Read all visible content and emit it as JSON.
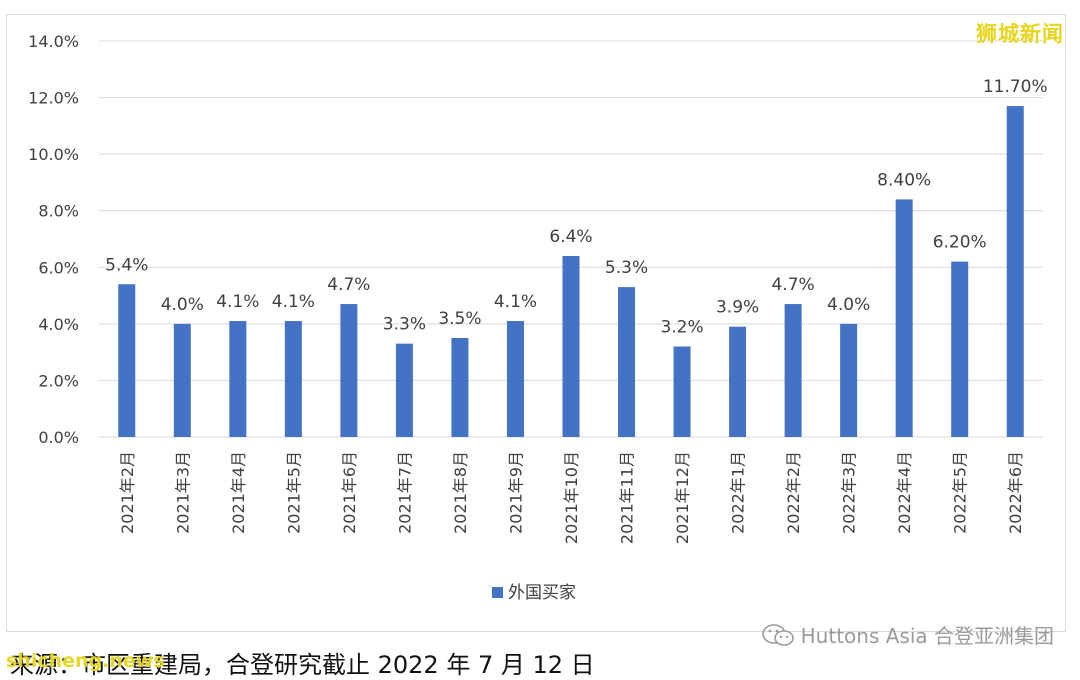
{
  "brand": {
    "text": "狮城新闻"
  },
  "source": {
    "text": "来源：市区重建局，合登研究截止 2022 年 7 月 12 日"
  },
  "watermarks": {
    "left_text": "shicheng.news",
    "right_text": "Huttons Asia 合登亚洲集团",
    "right_icon": "wechat-icon"
  },
  "colors": {
    "bar": "#4472c4",
    "grid": "#d9d9d9",
    "text": "#404040",
    "brand": "#e8d51b"
  },
  "chart_data": {
    "type": "bar",
    "categories": [
      "2021年2月",
      "2021年3月",
      "2021年4月",
      "2021年5月",
      "2021年6月",
      "2021年7月",
      "2021年8月",
      "2021年9月",
      "2021年10月",
      "2021年11月",
      "2021年12月",
      "2022年1月",
      "2022年2月",
      "2022年3月",
      "2022年4月",
      "2022年5月",
      "2022年6月"
    ],
    "series": [
      {
        "name": "外国买家",
        "values": [
          5.4,
          4.0,
          4.1,
          4.1,
          4.7,
          3.3,
          3.5,
          4.1,
          6.4,
          5.3,
          3.2,
          3.9,
          4.7,
          4.0,
          8.4,
          6.2,
          11.7
        ]
      }
    ],
    "data_labels": [
      "5.4%",
      "4.0%",
      "4.1%",
      "4.1%",
      "4.7%",
      "3.3%",
      "3.5%",
      "4.1%",
      "6.4%",
      "5.3%",
      "3.2%",
      "3.9%",
      "4.7%",
      "4.0%",
      "8.40%",
      "6.20%",
      "11.70%"
    ],
    "yticks": [
      "0.0%",
      "2.0%",
      "4.0%",
      "6.0%",
      "8.0%",
      "10.0%",
      "12.0%",
      "14.0%"
    ],
    "ylim": [
      0,
      14
    ],
    "grid": true,
    "legend_position": "bottom"
  }
}
